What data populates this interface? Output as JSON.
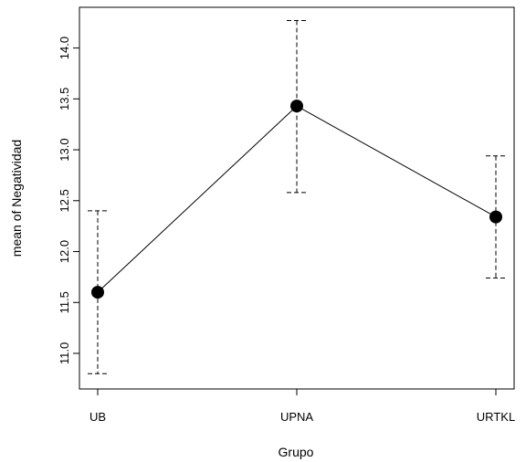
{
  "chart_data": {
    "type": "line",
    "xlabel": "Grupo",
    "ylabel": "mean of Negatividad",
    "categories": [
      "UB",
      "UPNA",
      "URTKL"
    ],
    "series": [
      {
        "values": [
          11.6,
          13.43,
          12.34
        ],
        "error_low": [
          10.8,
          12.58,
          11.74
        ],
        "error_high": [
          12.4,
          14.27,
          12.94
        ]
      }
    ],
    "ylim": [
      10.65,
      14.4
    ],
    "yticks": [
      "11.0",
      "11.5",
      "12.0",
      "12.5",
      "13.0",
      "13.5",
      "14.0"
    ],
    "grid": false,
    "error_bar_style": "dashed",
    "marker": "filled-circle",
    "colors": {
      "line": "#000000",
      "marker": "#000000",
      "frame": "#000000"
    }
  }
}
